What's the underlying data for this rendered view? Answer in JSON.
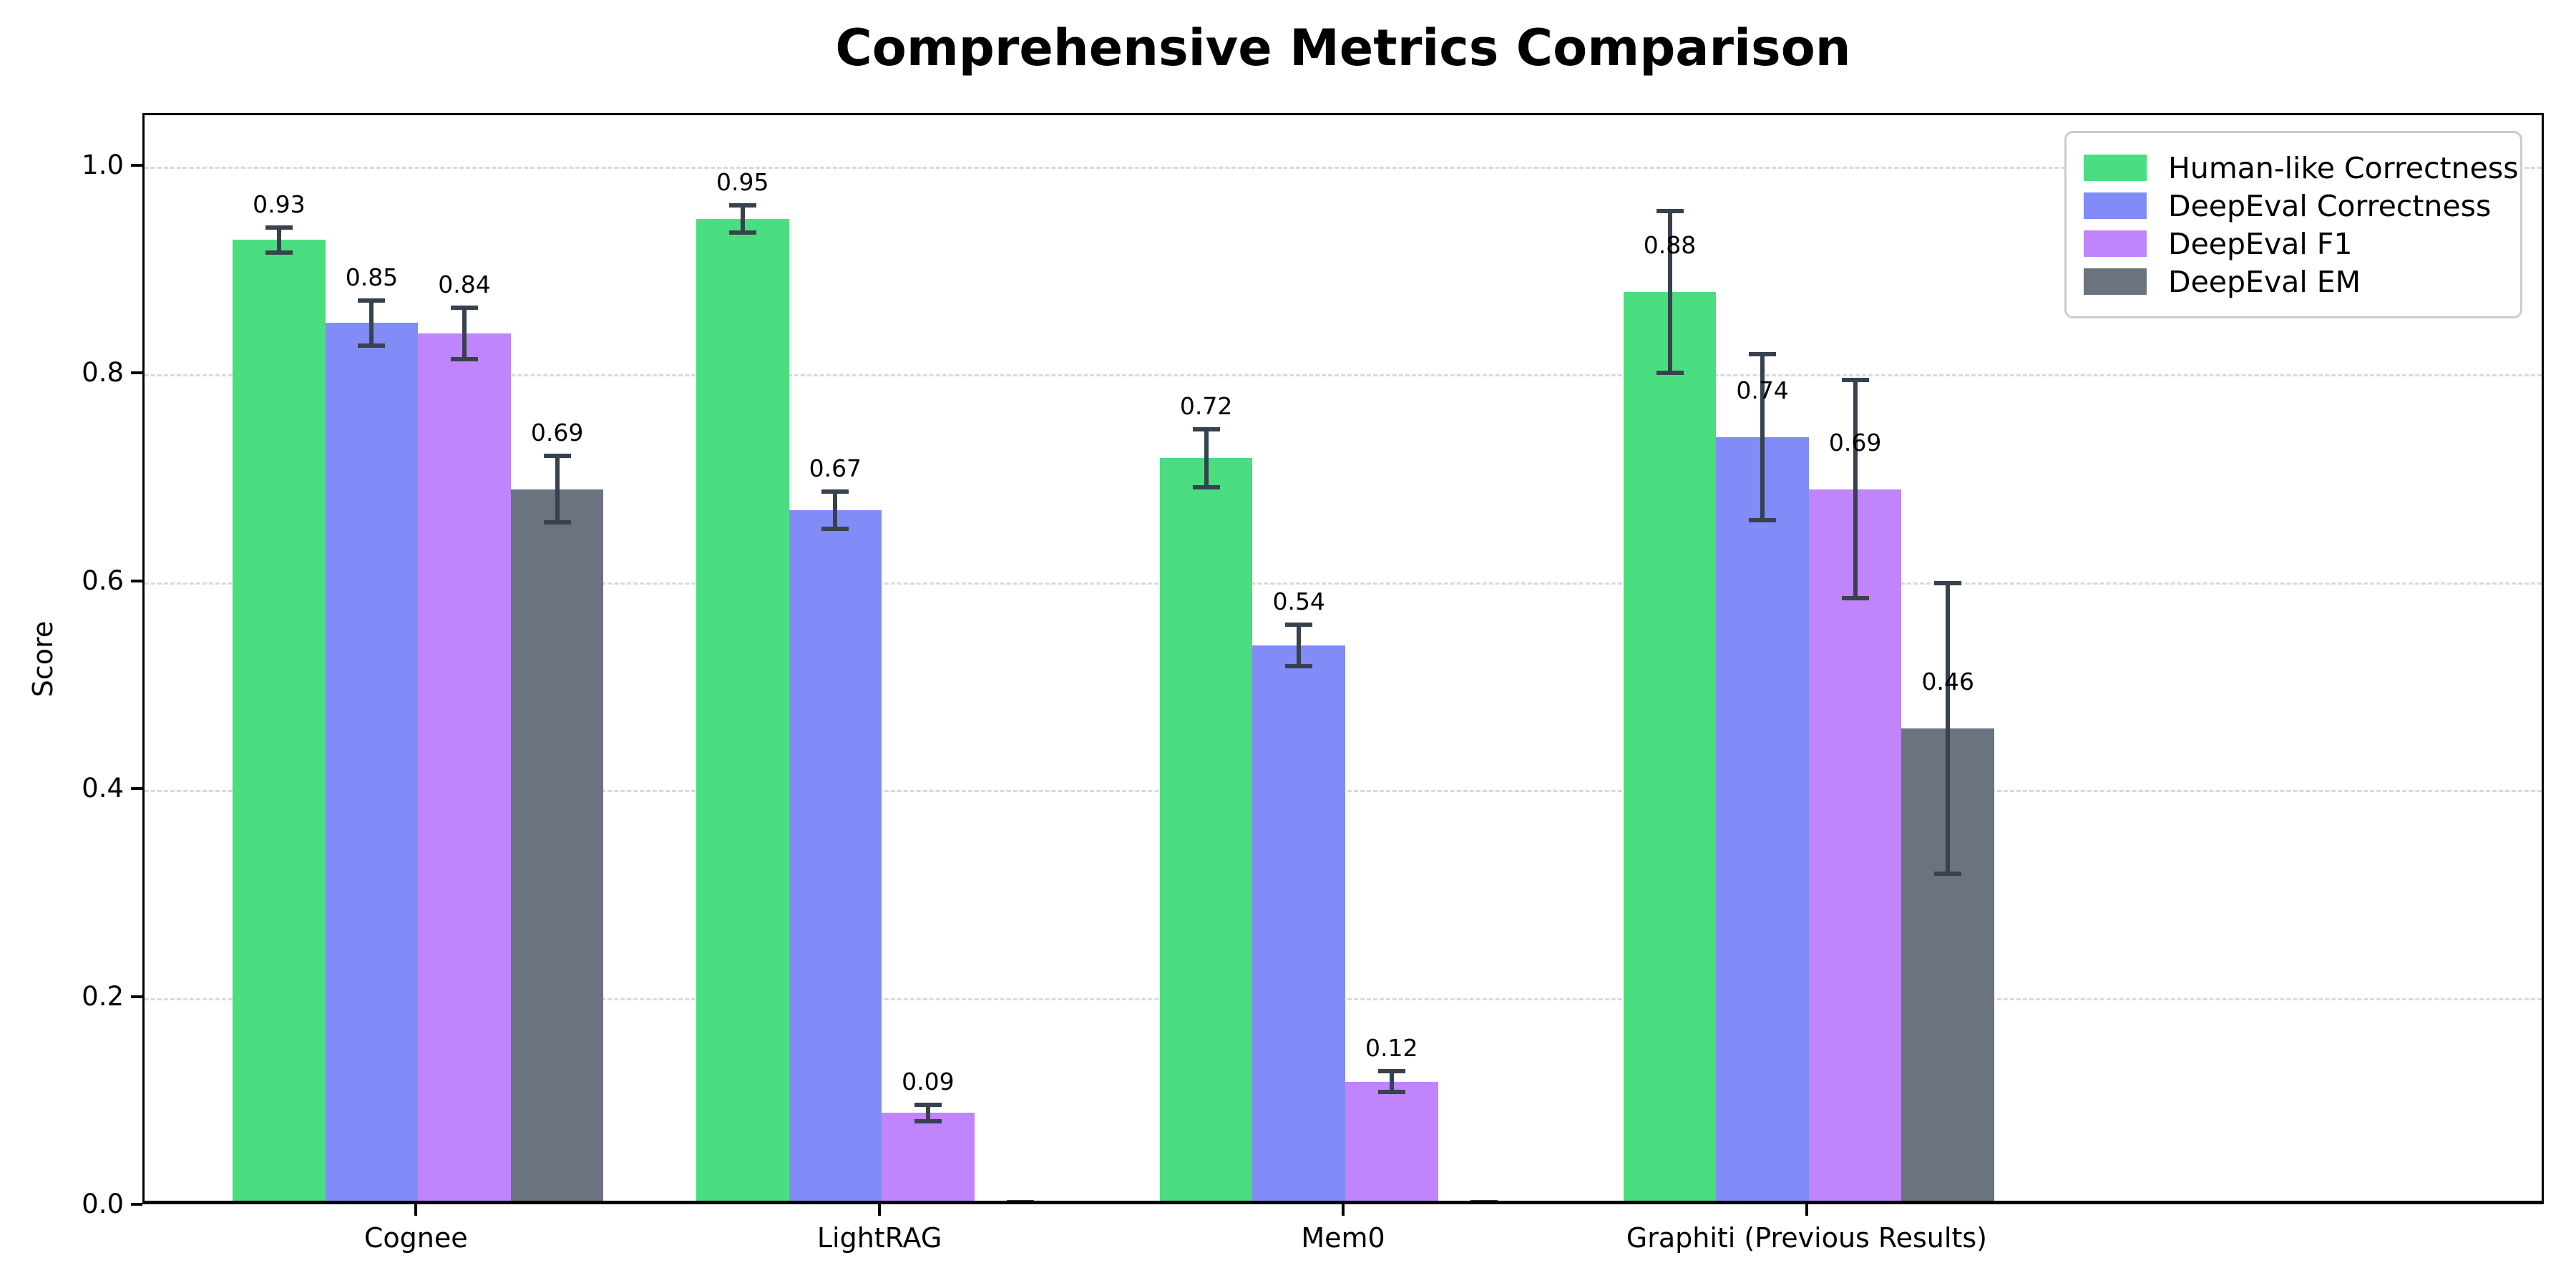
{
  "chart_data": {
    "type": "bar",
    "title": "Comprehensive Metrics Comparison",
    "xlabel": "",
    "ylabel": "Score",
    "ylim": [
      0,
      1.05
    ],
    "yticks": [
      "0.0",
      "0.2",
      "0.4",
      "0.6",
      "0.8",
      "1.0"
    ],
    "grid": "horizontal-dashed",
    "legend_position": "upper-right",
    "error_bar_color": "#37424e",
    "categories": [
      "Cognee",
      "LightRAG",
      "Mem0",
      "Graphiti (Previous Results)"
    ],
    "series": [
      {
        "name": "Human-like Correctness",
        "color": "#4ade80",
        "values": [
          0.93,
          0.95,
          0.72,
          0.88
        ],
        "errors": [
          0.012,
          0.013,
          0.028,
          0.078
        ],
        "labels": [
          "0.93",
          "0.95",
          "0.72",
          "0.88"
        ]
      },
      {
        "name": "DeepEval Correctness",
        "color": "#818cf8",
        "values": [
          0.85,
          0.67,
          0.54,
          0.74
        ],
        "errors": [
          0.022,
          0.018,
          0.02,
          0.08
        ],
        "labels": [
          "0.85",
          "0.67",
          "0.54",
          "0.74"
        ]
      },
      {
        "name": "DeepEval F1",
        "color": "#c084fc",
        "values": [
          0.84,
          0.09,
          0.12,
          0.69
        ],
        "errors": [
          0.025,
          0.008,
          0.01,
          0.105
        ],
        "labels": [
          "0.84",
          "0.09",
          "0.12",
          "0.69"
        ]
      },
      {
        "name": "DeepEval EM",
        "color": "#6b7280",
        "values": [
          0.69,
          0.0,
          0.0,
          0.46
        ],
        "errors": [
          0.032,
          0.004,
          0.004,
          0.14
        ],
        "labels": [
          "0.69",
          "",
          "",
          "0.46"
        ]
      }
    ]
  }
}
